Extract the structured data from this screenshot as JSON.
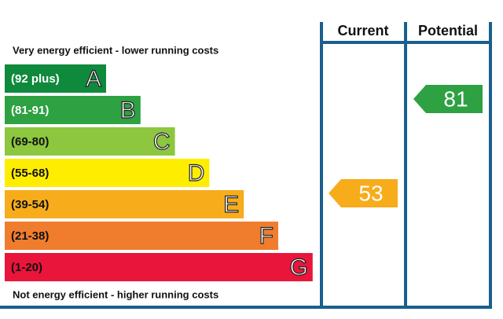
{
  "header": {
    "top_note": "Very energy efficient - lower running costs",
    "bottom_note": "Not energy efficient - higher running costs",
    "columns": [
      "Current",
      "Potential"
    ]
  },
  "bands": [
    {
      "range": "(92 plus)",
      "letter": "A",
      "color": "#0f8a3c",
      "text_color": "#ffffff"
    },
    {
      "range": "(81-91)",
      "letter": "B",
      "color": "#2ea142",
      "text_color": "#ffffff"
    },
    {
      "range": "(69-80)",
      "letter": "C",
      "color": "#8dc63f",
      "text_color": "#111111"
    },
    {
      "range": "(55-68)",
      "letter": "D",
      "color": "#ffed00",
      "text_color": "#111111"
    },
    {
      "range": "(39-54)",
      "letter": "E",
      "color": "#f7ac1b",
      "text_color": "#111111"
    },
    {
      "range": "(21-38)",
      "letter": "F",
      "color": "#ef7d2d",
      "text_color": "#111111"
    },
    {
      "range": "(1-20)",
      "letter": "G",
      "color": "#e9153b",
      "text_color": "#111111"
    }
  ],
  "ratings": [
    {
      "value": 53,
      "color": "#f7ac1b"
    },
    {
      "value": 81,
      "color": "#2ea142"
    }
  ]
}
